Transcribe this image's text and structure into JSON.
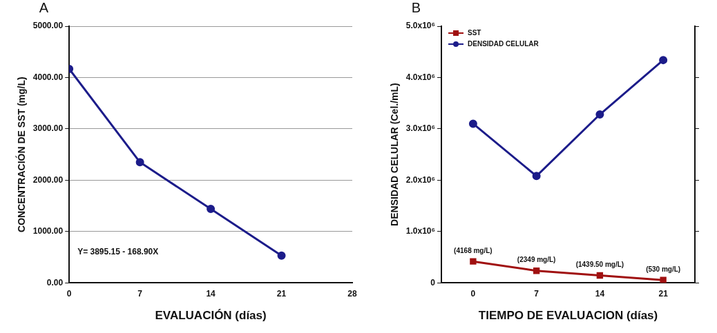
{
  "chart_data": [
    {
      "type": "line",
      "title": "A",
      "xlabel": "EVALUACIÓN (días)",
      "ylabel": "CONCENTRACIÓN DE SST (mg/L)",
      "x": [
        0,
        7,
        14,
        21
      ],
      "xlim": [
        0,
        28
      ],
      "xticks": [
        0,
        7,
        14,
        21,
        28
      ],
      "ylim": [
        0,
        5000
      ],
      "yticks": [
        {
          "value": 0,
          "label": "0.00"
        },
        {
          "value": 1000,
          "label": "1000.00"
        },
        {
          "value": 2000,
          "label": "2000.00"
        },
        {
          "value": 3000,
          "label": "3000.00"
        },
        {
          "value": 4000,
          "label": "4000.00"
        },
        {
          "value": 5000,
          "label": "5000.00"
        }
      ],
      "grid": "y",
      "marker": "circle",
      "annotations": [
        "Y= 3895.15 - 168.90X"
      ],
      "series": [
        {
          "color": "#1c1c8a",
          "values": [
            4168,
            2349,
            1439.5,
            530
          ]
        }
      ]
    },
    {
      "type": "line",
      "title": "B",
      "xlabel": "TIEMPO DE EVALUACION (días)",
      "ylabel": "DENSIDAD CELULAR (Cel./mL)",
      "x": [
        0,
        7,
        14,
        21
      ],
      "xlim": [
        -3.5,
        24.5
      ],
      "xticks": [
        0,
        7,
        14,
        21
      ],
      "ylim": [
        0,
        5000000
      ],
      "yticks": [
        0,
        {
          "value": 1000000,
          "label": "1.0x10⁶"
        },
        {
          "value": 2000000,
          "label": "2.0x10⁶"
        },
        {
          "value": 3000000,
          "label": "3.0x10⁶"
        },
        {
          "value": 4000000,
          "label": "4.0x10⁶"
        },
        {
          "value": 5000000,
          "label": "5.0x10⁶"
        }
      ],
      "y2lim": [
        0,
        50000
      ],
      "y2ticks": [
        {
          "value": 0,
          "label": null
        },
        {
          "value": 10000,
          "label": null
        },
        {
          "value": 20000,
          "label": null
        },
        {
          "value": 30000,
          "label": null
        },
        {
          "value": 40000,
          "label": null
        },
        {
          "value": 50000,
          "label": null
        }
      ],
      "grid": false,
      "legend": "top left",
      "series": [
        {
          "name": "SST",
          "color": "#a01010",
          "axis": "y2",
          "marker": "square",
          "values": [
            4168,
            2349,
            1439.5,
            530
          ],
          "value_labels": [
            "(4168 mg/L)",
            "(2349 mg/L)",
            "(1439.50 mg/L)",
            "(530 mg/L)"
          ]
        },
        {
          "name": "DENSIDAD CELULAR",
          "color": "#1c1c8a",
          "marker": "circle",
          "values": [
            3100000,
            2080000,
            3280000,
            4340000
          ]
        }
      ]
    }
  ]
}
